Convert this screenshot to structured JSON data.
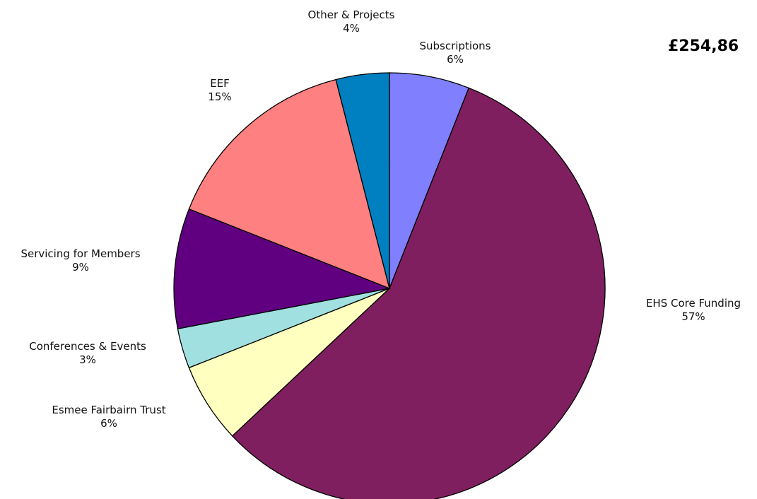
{
  "chart_data": {
    "type": "pie",
    "title": "£254,86",
    "slices": [
      {
        "label": "Subscriptions",
        "pct_label": "6%",
        "value": 6,
        "color": "#8080ff"
      },
      {
        "label": "EHS Core Funding",
        "pct_label": "57%",
        "value": 57,
        "color": "#7f1f5f"
      },
      {
        "label": "Esmee Fairbairn Trust",
        "pct_label": "6%",
        "value": 6,
        "color": "#ffffc0"
      },
      {
        "label": "Conferences & Events",
        "pct_label": "3%",
        "value": 3,
        "color": "#a0e0e0"
      },
      {
        "label": "Servicing for Members",
        "pct_label": "9%",
        "value": 9,
        "color": "#600080"
      },
      {
        "label": "EEF",
        "pct_label": "15%",
        "value": 15,
        "color": "#ff8080"
      },
      {
        "label": "Other & Projects",
        "pct_label": "4%",
        "value": 4,
        "color": "#0080c0"
      }
    ]
  }
}
